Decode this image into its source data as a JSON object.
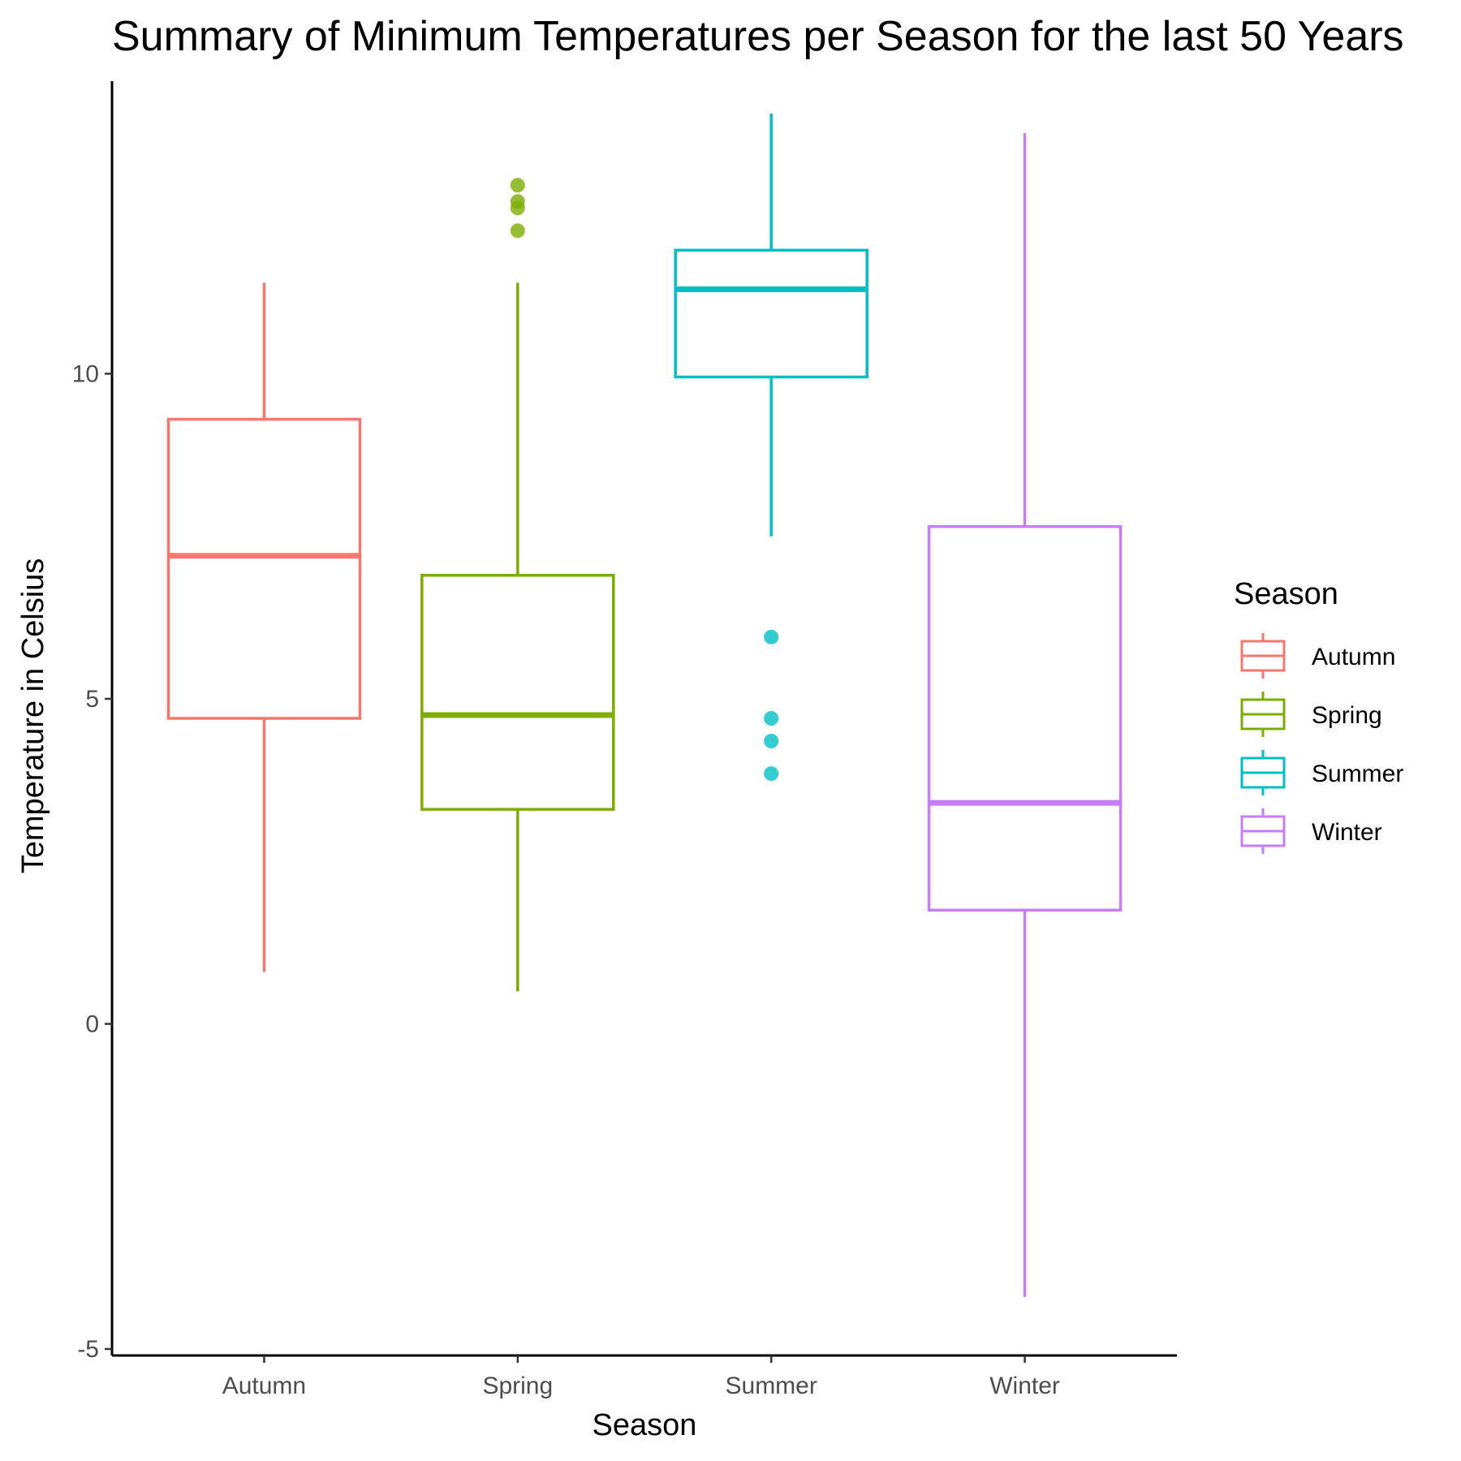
{
  "chart_data": {
    "type": "boxplot",
    "title": "Summary of Minimum Temperatures per Season for the last 50 Years",
    "xlabel": "Season",
    "ylabel": "Temperature in Celsius",
    "ylim": [
      -5.1,
      14.5
    ],
    "yticks": [
      -5,
      0,
      5,
      10
    ],
    "categories": [
      "Autumn",
      "Spring",
      "Summer",
      "Winter"
    ],
    "colors": [
      "#F8766D",
      "#7CAE00",
      "#00BFC4",
      "#C77CFF"
    ],
    "series": [
      {
        "name": "Autumn",
        "min": 0.8,
        "q1": 4.7,
        "median": 7.2,
        "q3": 9.3,
        "max": 11.4,
        "outliers": []
      },
      {
        "name": "Spring",
        "min": 0.5,
        "q1": 3.3,
        "median": 4.75,
        "q3": 6.9,
        "max": 11.4,
        "outliers": [
          12.9,
          12.65,
          12.55,
          12.2
        ]
      },
      {
        "name": "Summer",
        "min": 7.5,
        "q1": 9.95,
        "median": 11.3,
        "q3": 11.9,
        "max": 14.0,
        "outliers": [
          5.95,
          4.7,
          4.35,
          3.85
        ]
      },
      {
        "name": "Winter",
        "min": -4.2,
        "q1": 1.75,
        "median": 3.4,
        "q3": 7.65,
        "max": 13.7,
        "outliers": []
      }
    ],
    "grid": false,
    "legend": {
      "title": "Season",
      "position": "right"
    }
  }
}
